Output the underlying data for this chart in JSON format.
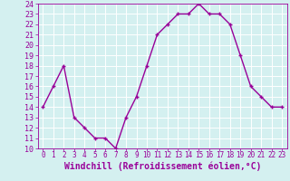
{
  "x": [
    0,
    1,
    2,
    3,
    4,
    5,
    6,
    7,
    8,
    9,
    10,
    11,
    12,
    13,
    14,
    15,
    16,
    17,
    18,
    19,
    20,
    21,
    22,
    23
  ],
  "y": [
    14,
    16,
    18,
    13,
    12,
    11,
    11,
    10,
    13,
    15,
    18,
    21,
    22,
    23,
    23,
    24,
    23,
    23,
    22,
    19,
    16,
    15,
    14,
    14
  ],
  "line_color": "#990099",
  "marker": "+",
  "xlabel": "Windchill (Refroidissement éolien,°C)",
  "ylim": [
    10,
    24
  ],
  "xlim": [
    -0.5,
    23.5
  ],
  "yticks": [
    10,
    11,
    12,
    13,
    14,
    15,
    16,
    17,
    18,
    19,
    20,
    21,
    22,
    23,
    24
  ],
  "xticks": [
    0,
    1,
    2,
    3,
    4,
    5,
    6,
    7,
    8,
    9,
    10,
    11,
    12,
    13,
    14,
    15,
    16,
    17,
    18,
    19,
    20,
    21,
    22,
    23
  ],
  "bg_color": "#d4f0f0",
  "grid_color": "#ffffff",
  "line_width": 1.0,
  "marker_size": 3,
  "tick_color": "#990099",
  "xlabel_color": "#990099",
  "xlabel_fontsize": 7,
  "ytick_fontsize": 6,
  "xtick_fontsize": 5.5
}
